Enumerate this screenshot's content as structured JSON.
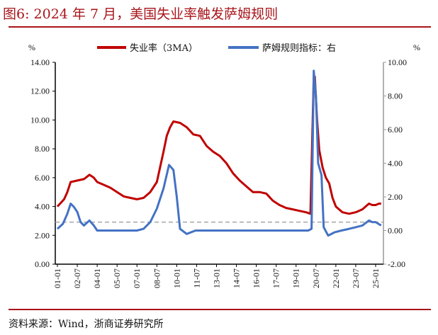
{
  "title": "图6:  2024 年 7 月，美国失业率触发萨姆规则",
  "source": "资料来源：Wind，浙商证券研究所",
  "colors": {
    "accent": "#a8151b",
    "unemployment": "#c00000",
    "sahm": "#4472c4",
    "threshold": "#a6a6a6"
  },
  "chart_data": {
    "type": "line",
    "left_unit": "%",
    "right_unit": "%",
    "left_ylim": [
      0,
      14
    ],
    "right_ylim": [
      -2,
      10
    ],
    "left_ticks": [
      "0.00",
      "2.00",
      "4.00",
      "6.00",
      "8.00",
      "10.00",
      "12.00",
      "14.00"
    ],
    "right_ticks": [
      "-2.00",
      "0.00",
      "2.00",
      "4.00",
      "6.00",
      "8.00",
      "10.00"
    ],
    "x_ticks": [
      "01-01",
      "02-07",
      "04-01",
      "05-07",
      "07-01",
      "08-07",
      "10-01",
      "11-07",
      "13-01",
      "14-07",
      "16-01",
      "17-07",
      "19-01",
      "20-07",
      "22-01",
      "23-07",
      "25-01"
    ],
    "grid": false,
    "legend_position": "top",
    "threshold_right_axis": 0.5,
    "series": [
      {
        "name": "失业率（3MA）",
        "axis": "left",
        "x": [
          "2001-01",
          "2001-07",
          "2001-10",
          "2002-01",
          "2002-07",
          "2003-01",
          "2003-06",
          "2003-10",
          "2004-01",
          "2004-07",
          "2005-01",
          "2005-07",
          "2006-01",
          "2006-07",
          "2007-01",
          "2007-07",
          "2008-01",
          "2008-07",
          "2009-01",
          "2009-04",
          "2009-07",
          "2009-10",
          "2010-04",
          "2010-10",
          "2011-04",
          "2011-10",
          "2012-04",
          "2012-10",
          "2013-04",
          "2013-10",
          "2014-04",
          "2014-10",
          "2015-04",
          "2015-10",
          "2016-04",
          "2016-10",
          "2017-04",
          "2017-10",
          "2018-04",
          "2018-10",
          "2019-04",
          "2019-10",
          "2020-02",
          "2020-05",
          "2020-06",
          "2020-08",
          "2020-10",
          "2021-01",
          "2021-04",
          "2021-07",
          "2021-10",
          "2022-01",
          "2022-07",
          "2023-01",
          "2023-07",
          "2024-01",
          "2024-07",
          "2024-10",
          "2025-01",
          "2025-04",
          "2025-06"
        ],
        "values": [
          4.0,
          4.5,
          5.0,
          5.7,
          5.8,
          5.9,
          6.2,
          6.0,
          5.7,
          5.5,
          5.3,
          5.0,
          4.7,
          4.6,
          4.5,
          4.6,
          5.0,
          5.7,
          7.8,
          8.9,
          9.5,
          9.9,
          9.8,
          9.5,
          9.0,
          8.9,
          8.2,
          7.8,
          7.5,
          7.0,
          6.3,
          5.8,
          5.4,
          5.0,
          5.0,
          4.9,
          4.4,
          4.1,
          3.9,
          3.8,
          3.7,
          3.6,
          3.5,
          13.0,
          13.0,
          10.0,
          7.9,
          6.7,
          6.0,
          5.6,
          4.6,
          4.0,
          3.6,
          3.5,
          3.6,
          3.8,
          4.2,
          4.1,
          4.1,
          4.2,
          4.2
        ]
      },
      {
        "name": "萨姆规则指标：右",
        "axis": "right",
        "x": [
          "2001-01",
          "2001-06",
          "2001-10",
          "2002-01",
          "2002-04",
          "2002-07",
          "2002-10",
          "2003-01",
          "2003-06",
          "2003-10",
          "2004-01",
          "2004-07",
          "2005-06",
          "2006-06",
          "2007-01",
          "2007-07",
          "2008-01",
          "2008-07",
          "2009-01",
          "2009-06",
          "2009-10",
          "2010-01",
          "2010-04",
          "2010-10",
          "2011-06",
          "2012-06",
          "2013-06",
          "2014-06",
          "2015-06",
          "2016-06",
          "2017-06",
          "2018-06",
          "2019-06",
          "2019-12",
          "2020-03",
          "2020-05",
          "2020-07",
          "2020-09",
          "2020-12",
          "2021-02",
          "2021-06",
          "2021-12",
          "2022-06",
          "2023-01",
          "2023-07",
          "2024-01",
          "2024-07",
          "2024-10",
          "2025-01",
          "2025-06"
        ],
        "values": [
          0.1,
          0.4,
          1.0,
          1.6,
          1.4,
          1.1,
          0.5,
          0.3,
          0.6,
          0.3,
          0.0,
          0.0,
          0.0,
          0.0,
          0.0,
          0.1,
          0.5,
          1.3,
          2.5,
          3.9,
          3.6,
          2.0,
          0.1,
          -0.2,
          0.0,
          0.0,
          0.0,
          0.0,
          0.0,
          0.0,
          0.0,
          0.0,
          0.0,
          0.0,
          0.1,
          9.5,
          8.0,
          4.0,
          3.3,
          0.2,
          -0.3,
          -0.1,
          0.0,
          0.1,
          0.2,
          0.3,
          0.6,
          0.5,
          0.5,
          0.3
        ]
      }
    ]
  }
}
